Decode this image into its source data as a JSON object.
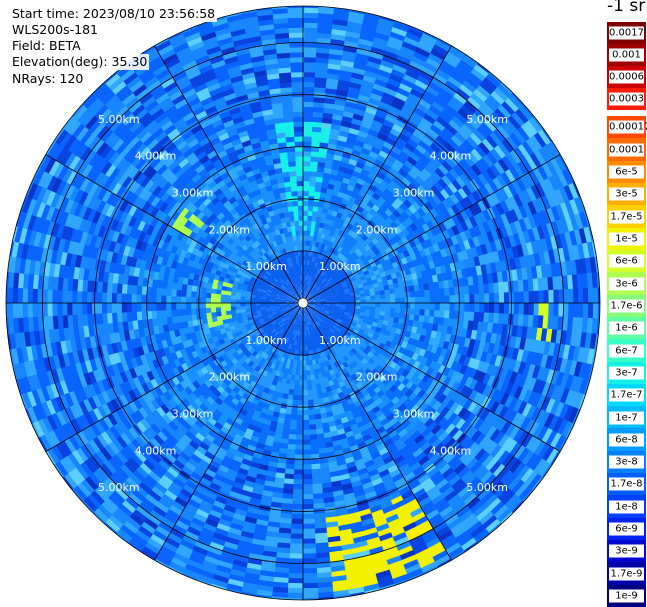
{
  "info": {
    "start_time": "Start time: 2023/08/10 23:56:58",
    "device": "WLS200s-181",
    "field": "Field: BETA",
    "elevation": "Elevation(deg): 35.30",
    "nrays": "NRays: 120"
  },
  "chart_data": {
    "type": "heatmap",
    "projection": "polar",
    "field": "BETA",
    "unit": "-1 sr",
    "rings": [
      {
        "radius_km": 1,
        "label": "1.00km"
      },
      {
        "radius_km": 2,
        "label": "2.00km"
      },
      {
        "radius_km": 3,
        "label": "3.00km"
      },
      {
        "radius_km": 4,
        "label": "4.00km"
      },
      {
        "radius_km": 5,
        "label": "5.00km"
      }
    ],
    "max_range_km": 5.7,
    "spokes_deg": [
      0,
      30,
      60,
      90,
      120,
      150,
      180,
      210,
      240,
      270,
      300,
      330
    ],
    "nrays": 120,
    "colorbar": {
      "top_section": [
        {
          "label": "0.0017",
          "color": "#7f0000"
        },
        {
          "label": "0.001",
          "color": "#a00000"
        },
        {
          "label": "0.0006",
          "color": "#cc0000"
        },
        {
          "label": "0.0003",
          "color": "#ff1a00"
        }
      ],
      "main_section": [
        {
          "label": "0.00017",
          "color": "#ff4a00"
        },
        {
          "label": "0.0001",
          "color": "#ff6a00"
        },
        {
          "label": "6e-5",
          "color": "#ff8c00"
        },
        {
          "label": "3e-5",
          "color": "#ffae00"
        },
        {
          "label": "1.7e-5",
          "color": "#ffd000"
        },
        {
          "label": "1e-5",
          "color": "#f2f200"
        },
        {
          "label": "6e-6",
          "color": "#d2ff28"
        },
        {
          "label": "3e-6",
          "color": "#adff50"
        },
        {
          "label": "1.7e-6",
          "color": "#86ff78"
        },
        {
          "label": "1e-6",
          "color": "#5fffa0"
        },
        {
          "label": "6e-7",
          "color": "#36ffc8"
        },
        {
          "label": "3e-7",
          "color": "#16f0e8"
        },
        {
          "label": "1.7e-7",
          "color": "#00d8ff"
        },
        {
          "label": "1e-7",
          "color": "#00bcff"
        },
        {
          "label": "6e-8",
          "color": "#009cff"
        },
        {
          "label": "3e-8",
          "color": "#0080ff"
        },
        {
          "label": "1.7e-8",
          "color": "#0060ff"
        },
        {
          "label": "1e-8",
          "color": "#0040ff"
        },
        {
          "label": "6e-9",
          "color": "#0022f0"
        },
        {
          "label": "3e-9",
          "color": "#0008d0"
        },
        {
          "label": "1.7e-9",
          "color": "#0000a8"
        },
        {
          "label": "1e-9",
          "color": "#000080"
        }
      ]
    },
    "features": [
      {
        "description": "enhanced echoes",
        "azimuth_deg": [
          150,
          175
        ],
        "range_km": [
          4.1,
          5.6
        ],
        "value": "1e-5"
      },
      {
        "description": "enhanced echoes",
        "azimuth_deg": [
          90,
          100
        ],
        "range_km": [
          4.5,
          4.9
        ],
        "value": "6e-6"
      },
      {
        "description": "enhanced echoes",
        "azimuth_deg": [
          255,
          285
        ],
        "range_km": [
          1.4,
          1.9
        ],
        "value": "3e-6"
      },
      {
        "description": "enhanced echoes",
        "azimuth_deg": [
          300,
          310
        ],
        "range_km": [
          2.4,
          2.9
        ],
        "value": "3e-6"
      },
      {
        "description": "enhanced echoes",
        "azimuth_deg": [
          350,
          10
        ],
        "range_km": [
          1.3,
          3.5
        ],
        "value": "3e-7"
      }
    ]
  }
}
